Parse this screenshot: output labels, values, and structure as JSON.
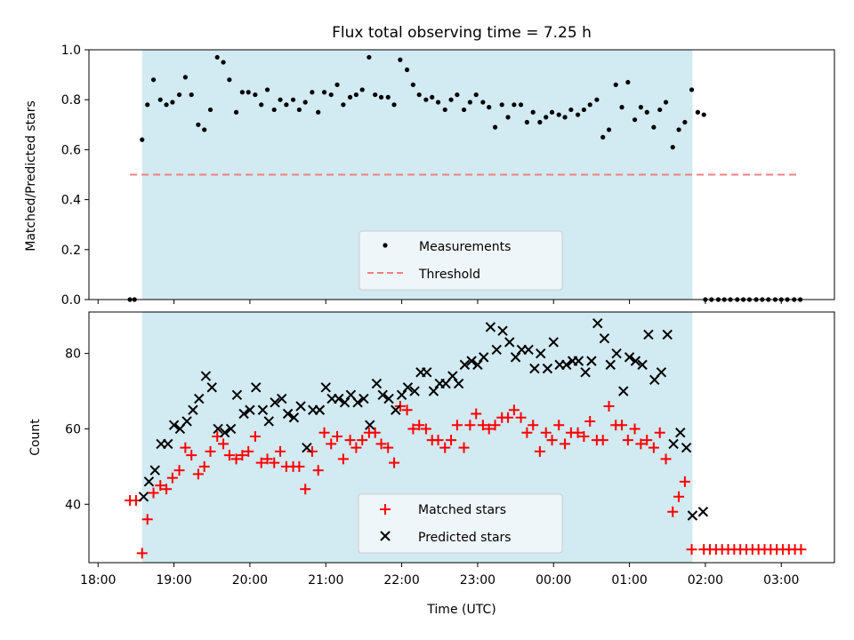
{
  "chart_data": {
    "type": "scatter",
    "title": "Flux total observing time = 7.25 h",
    "xlabel": "Time (UTC)",
    "x_ticks": [
      "18:00",
      "19:00",
      "20:00",
      "21:00",
      "22:00",
      "23:00",
      "00:00",
      "01:00",
      "02:00",
      "03:00"
    ],
    "xlim_hours": [
      17.88,
      27.7
    ],
    "shaded_window_hours": [
      18.58,
      25.83
    ],
    "colors": {
      "measurements": "#000000",
      "threshold": "#f08080",
      "matched": "#ff0000",
      "predicted": "#000000",
      "shade": "#add8e6",
      "legend_bg": "#f5f8fa"
    },
    "panels": [
      {
        "ylabel": "Matched/Predicted stars",
        "ylim": [
          0,
          1.0
        ],
        "y_ticks": [
          "0.0",
          "0.2",
          "0.4",
          "0.6",
          "0.8",
          "1.0"
        ],
        "legend": [
          "Measurements",
          "Threshold"
        ],
        "threshold": 0.5,
        "threshold_x": [
          18.42,
          27.2
        ],
        "measurements": {
          "x": [
            18.42,
            18.48,
            18.58,
            18.65,
            18.73,
            18.82,
            18.9,
            18.98,
            19.07,
            19.15,
            19.23,
            19.32,
            19.4,
            19.48,
            19.57,
            19.65,
            19.73,
            19.82,
            19.9,
            19.98,
            20.07,
            20.15,
            20.23,
            20.32,
            20.4,
            20.48,
            20.57,
            20.65,
            20.73,
            20.82,
            20.9,
            20.98,
            21.07,
            21.15,
            21.23,
            21.32,
            21.4,
            21.48,
            21.57,
            21.65,
            21.73,
            21.82,
            21.9,
            21.98,
            22.07,
            22.15,
            22.23,
            22.32,
            22.4,
            22.48,
            22.57,
            22.65,
            22.73,
            22.82,
            22.9,
            22.98,
            23.07,
            23.15,
            23.23,
            23.32,
            23.4,
            23.48,
            23.57,
            23.65,
            23.73,
            23.82,
            23.9,
            23.98,
            24.07,
            24.15,
            24.23,
            24.32,
            24.4,
            24.48,
            24.57,
            24.65,
            24.73,
            24.82,
            24.9,
            24.98,
            25.07,
            25.15,
            25.23,
            25.32,
            25.4,
            25.48,
            25.57,
            25.65,
            25.73,
            25.82,
            25.98,
            25.9,
            26.0,
            26.08,
            26.17,
            26.25,
            26.33,
            26.42,
            26.5,
            26.58,
            26.67,
            26.75,
            26.83,
            26.92,
            27.0,
            27.08,
            27.17,
            27.25
          ],
          "y": [
            0.0,
            0.0,
            0.64,
            0.78,
            0.88,
            0.8,
            0.78,
            0.79,
            0.82,
            0.89,
            0.82,
            0.7,
            0.68,
            0.76,
            0.97,
            0.95,
            0.88,
            0.75,
            0.83,
            0.83,
            0.82,
            0.78,
            0.84,
            0.76,
            0.8,
            0.78,
            0.8,
            0.76,
            0.79,
            0.83,
            0.75,
            0.83,
            0.82,
            0.86,
            0.78,
            0.81,
            0.82,
            0.84,
            0.97,
            0.82,
            0.81,
            0.81,
            0.78,
            0.96,
            0.92,
            0.86,
            0.82,
            0.8,
            0.81,
            0.79,
            0.76,
            0.8,
            0.82,
            0.76,
            0.79,
            0.82,
            0.79,
            0.77,
            0.69,
            0.78,
            0.73,
            0.78,
            0.78,
            0.71,
            0.75,
            0.71,
            0.73,
            0.75,
            0.74,
            0.73,
            0.76,
            0.74,
            0.76,
            0.78,
            0.8,
            0.65,
            0.68,
            0.86,
            0.77,
            0.87,
            0.72,
            0.77,
            0.75,
            0.69,
            0.76,
            0.79,
            0.61,
            0.68,
            0.71,
            0.84,
            0.74,
            0.75,
            0.0,
            0.0,
            0.0,
            0.0,
            0.0,
            0.0,
            0.0,
            0.0,
            0.0,
            0.0,
            0.0,
            0.0,
            0.0,
            0.0,
            0.0,
            0.0
          ]
        }
      },
      {
        "ylabel": "Count",
        "ylim": [
          24.5,
          91
        ],
        "y_ticks": [
          "40",
          "60",
          "80"
        ],
        "y_tick_values": [
          40,
          60,
          80
        ],
        "legend": [
          "Matched stars",
          "Predicted stars"
        ],
        "matched": {
          "x": [
            18.42,
            18.5,
            18.58,
            18.65,
            18.73,
            18.82,
            18.9,
            18.98,
            19.07,
            19.15,
            19.23,
            19.32,
            19.4,
            19.48,
            19.57,
            19.65,
            19.73,
            19.82,
            19.9,
            19.98,
            20.07,
            20.15,
            20.23,
            20.32,
            20.4,
            20.48,
            20.57,
            20.65,
            20.73,
            20.82,
            20.9,
            20.98,
            21.07,
            21.15,
            21.23,
            21.32,
            21.4,
            21.48,
            21.57,
            21.65,
            21.73,
            21.82,
            21.9,
            21.98,
            22.07,
            22.15,
            22.23,
            22.32,
            22.4,
            22.48,
            22.57,
            22.65,
            22.73,
            22.82,
            22.9,
            22.98,
            23.07,
            23.15,
            23.23,
            23.32,
            23.4,
            23.48,
            23.57,
            23.65,
            23.73,
            23.82,
            23.9,
            23.98,
            24.07,
            24.15,
            24.23,
            24.32,
            24.4,
            24.48,
            24.57,
            24.65,
            24.73,
            24.82,
            24.9,
            24.98,
            25.07,
            25.15,
            25.23,
            25.32,
            25.4,
            25.48,
            25.57,
            25.65,
            25.73,
            25.82,
            25.98,
            26.06,
            26.14,
            26.22,
            26.3,
            26.38,
            26.46,
            26.54,
            26.62,
            26.7,
            26.78,
            26.86,
            26.94,
            27.02,
            27.1,
            27.18,
            27.26
          ],
          "y": [
            41,
            41,
            27,
            36,
            43,
            45,
            44,
            47,
            49,
            55,
            53,
            48,
            50,
            54,
            58,
            56,
            53,
            52,
            53,
            54,
            58,
            51,
            52,
            51,
            54,
            50,
            50,
            50,
            44,
            54,
            49,
            59,
            56,
            58,
            52,
            57,
            55,
            57,
            59,
            59,
            56,
            55,
            51,
            66,
            65,
            60,
            61,
            60,
            57,
            57,
            55,
            57,
            61,
            55,
            61,
            64,
            61,
            60,
            61,
            63,
            63,
            65,
            63,
            59,
            61,
            54,
            59,
            57,
            61,
            56,
            59,
            59,
            58,
            62,
            57,
            57,
            66,
            61,
            61,
            57,
            60,
            56,
            57,
            55,
            59,
            52,
            38,
            42,
            46,
            28,
            28,
            28,
            28,
            28,
            28,
            28,
            28,
            28,
            28,
            28,
            28,
            28,
            28,
            28,
            28,
            28,
            28
          ]
        },
        "predicted": {
          "x": [
            18.6,
            18.67,
            18.75,
            18.83,
            18.92,
            19.0,
            19.08,
            19.17,
            19.25,
            19.33,
            19.42,
            19.5,
            19.58,
            19.67,
            19.75,
            19.83,
            19.92,
            20.0,
            20.08,
            20.17,
            20.25,
            20.33,
            20.42,
            20.5,
            20.58,
            20.67,
            20.75,
            20.83,
            20.92,
            21.0,
            21.08,
            21.17,
            21.25,
            21.33,
            21.42,
            21.5,
            21.58,
            21.67,
            21.75,
            21.83,
            21.92,
            22.0,
            22.08,
            22.17,
            22.25,
            22.33,
            22.42,
            22.5,
            22.58,
            22.67,
            22.75,
            22.83,
            22.92,
            23.0,
            23.08,
            23.17,
            23.25,
            23.33,
            23.42,
            23.5,
            23.58,
            23.67,
            23.75,
            23.83,
            23.92,
            24.0,
            24.08,
            24.17,
            24.25,
            24.33,
            24.42,
            24.5,
            24.58,
            24.67,
            24.75,
            24.83,
            24.92,
            25.0,
            25.08,
            25.17,
            25.25,
            25.33,
            25.42,
            25.5,
            25.58,
            25.67,
            25.75,
            25.83,
            25.97
          ],
          "y": [
            42,
            46,
            49,
            56,
            56,
            61,
            60,
            62,
            65,
            68,
            74,
            71,
            60,
            59,
            60,
            69,
            64,
            65,
            71,
            65,
            62,
            67,
            68,
            64,
            63,
            66,
            55,
            65,
            65,
            71,
            68,
            68,
            67,
            69,
            67,
            68,
            61,
            72,
            69,
            68,
            65,
            69,
            71,
            70,
            75,
            75,
            70,
            72,
            72,
            74,
            72,
            77,
            78,
            77,
            79,
            87,
            81,
            86,
            83,
            79,
            81,
            81,
            76,
            80,
            76,
            83,
            77,
            77,
            78,
            78,
            75,
            78,
            88,
            84,
            77,
            80,
            70,
            79,
            78,
            77,
            85,
            73,
            75,
            85,
            56,
            59,
            55,
            37,
            38
          ]
        }
      }
    ]
  }
}
